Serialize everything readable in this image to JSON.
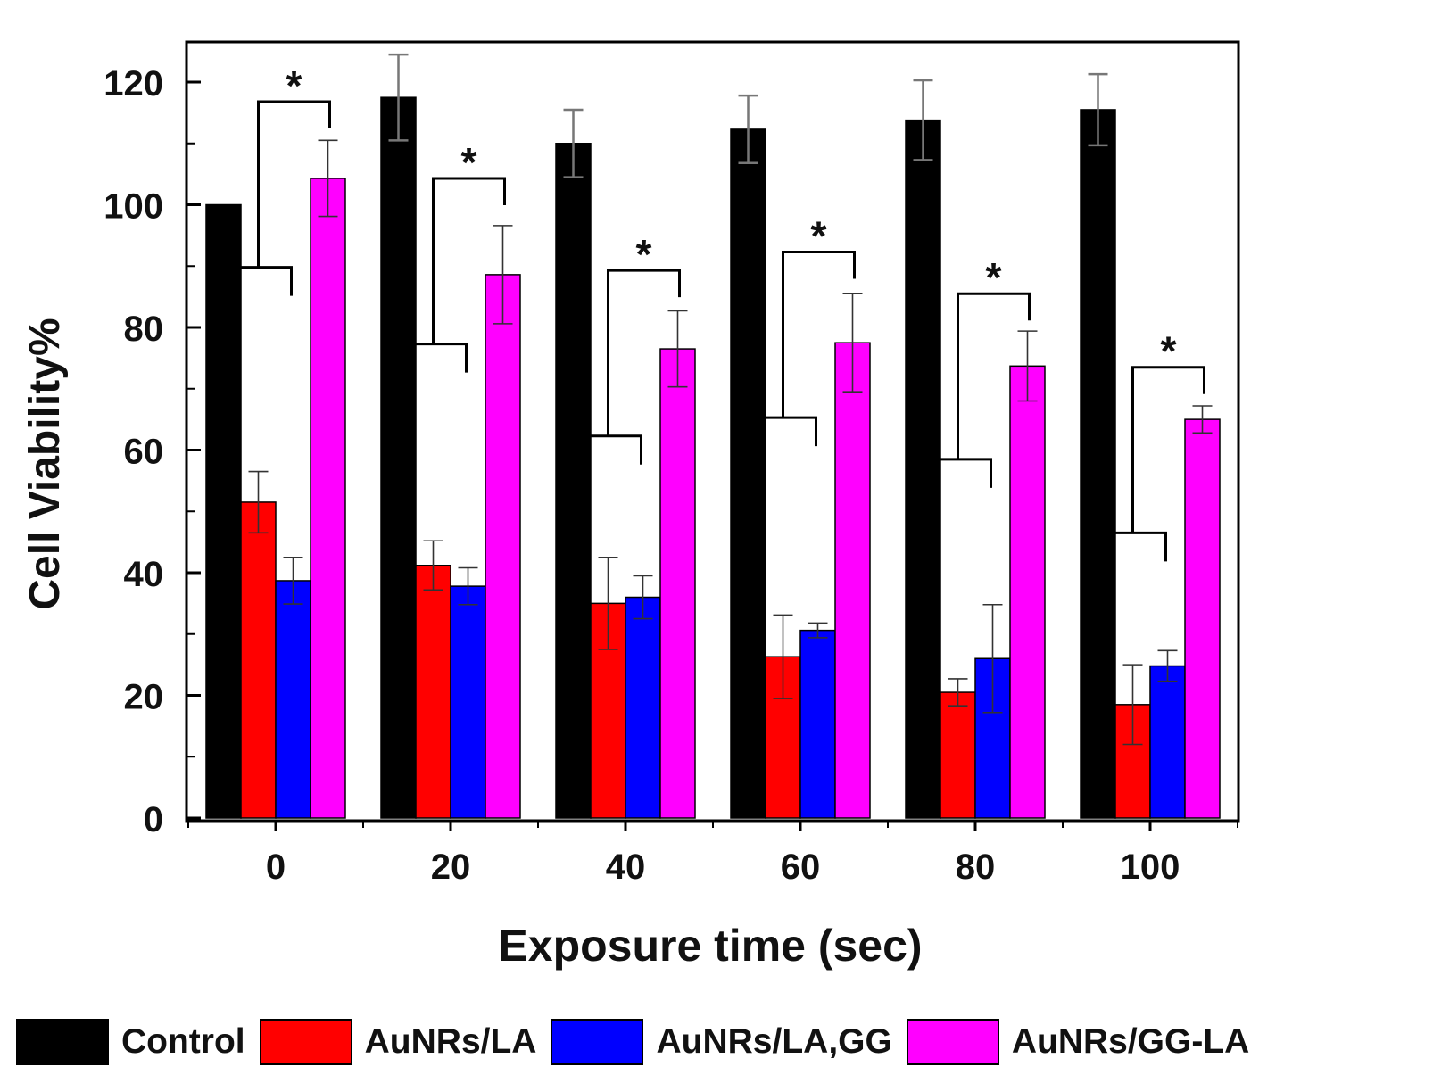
{
  "chart_data": {
    "type": "bar",
    "title": "",
    "xlabel": "Exposure time (sec)",
    "ylabel": "Cell Viability%",
    "ylim": [
      0,
      126
    ],
    "yticks": [
      0,
      20,
      40,
      60,
      80,
      100,
      120
    ],
    "categories": [
      "0",
      "20",
      "40",
      "60",
      "80",
      "100"
    ],
    "series": [
      {
        "name": "Control",
        "color": "#000000",
        "values": [
          100,
          117.5,
          110,
          112.3,
          113.8,
          115.5
        ],
        "errors": [
          0,
          7,
          5.5,
          5.5,
          6.5,
          5.8
        ]
      },
      {
        "name": "AuNRs/LA",
        "color": "#ff0000",
        "values": [
          51.5,
          41.2,
          35,
          26.3,
          20.5,
          18.5
        ],
        "errors": [
          5,
          4,
          7.5,
          6.8,
          2.2,
          6.5
        ]
      },
      {
        "name": "AuNRs/LA,GG",
        "color": "#0000ff",
        "values": [
          38.7,
          37.8,
          36,
          30.6,
          26,
          24.8
        ],
        "errors": [
          3.8,
          3,
          3.5,
          1.2,
          8.8,
          2.5
        ]
      },
      {
        "name": "AuNRs/GG-LA",
        "color": "#ff00ff",
        "values": [
          104.3,
          88.6,
          76.5,
          77.5,
          73.7,
          65
        ],
        "errors": [
          6.2,
          8,
          6.2,
          8,
          5.7,
          2.2
        ]
      }
    ],
    "annotations": [
      {
        "group": "0",
        "label": "*",
        "bracket_low": 89.8,
        "bracket_high": 116.8
      },
      {
        "group": "20",
        "label": "*",
        "bracket_low": 77.3,
        "bracket_high": 104.3
      },
      {
        "group": "40",
        "label": "*",
        "bracket_low": 62.3,
        "bracket_high": 89.3
      },
      {
        "group": "60",
        "label": "*",
        "bracket_low": 65.3,
        "bracket_high": 92.3
      },
      {
        "group": "80",
        "label": "*",
        "bracket_low": 58.5,
        "bracket_high": 85.5
      },
      {
        "group": "100",
        "label": "*",
        "bracket_low": 46.5,
        "bracket_high": 73.5
      }
    ],
    "legend_position": "bottom"
  }
}
